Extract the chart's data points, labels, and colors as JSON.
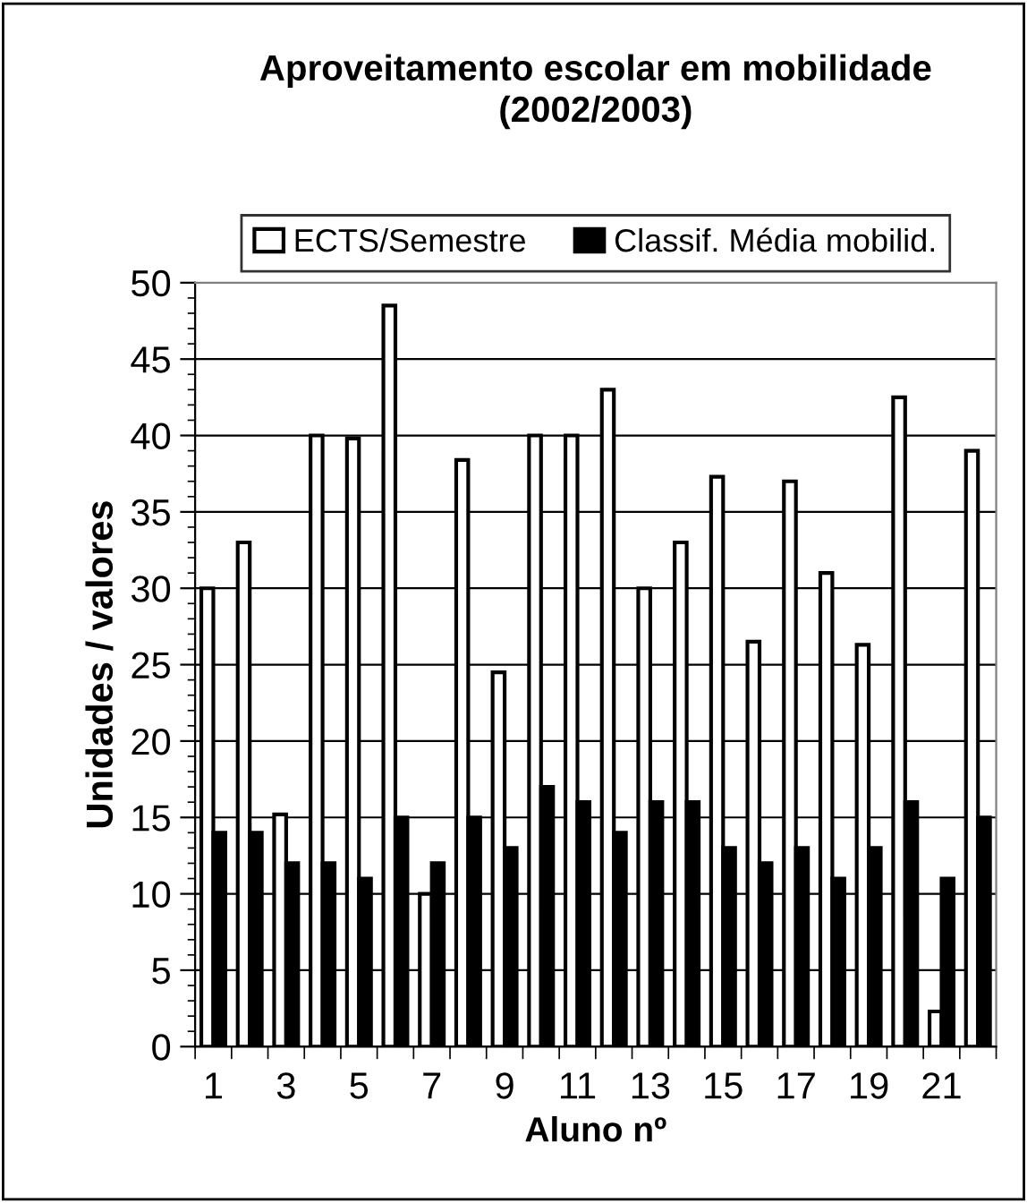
{
  "chart_data": {
    "type": "bar",
    "title": "Aproveitamento escolar em mobilidade\n(2002/2003)",
    "xlabel": "Aluno nº",
    "ylabel": "Unidades / valores",
    "categories": [
      "1",
      null,
      "3",
      null,
      "5",
      null,
      "7",
      null,
      "9",
      null,
      "11",
      null,
      "13",
      null,
      "15",
      null,
      "17",
      null,
      "19",
      null,
      "21",
      null
    ],
    "series": [
      {
        "name": "ECTS/Semestre",
        "color": "#ffffff",
        "values": [
          30,
          33,
          15.2,
          40,
          39.8,
          48.5,
          10,
          38.4,
          24.5,
          40,
          40,
          43,
          30,
          33,
          37.3,
          26.5,
          37,
          31,
          26.3,
          42.5,
          2.3,
          39
        ]
      },
      {
        "name": "Classif. Média mobilid.",
        "color": "#000000",
        "values": [
          14,
          14,
          12,
          12,
          11,
          15,
          12,
          15,
          13,
          17,
          16,
          14,
          16,
          16,
          13,
          12,
          13,
          11,
          13,
          16,
          11,
          15
        ]
      }
    ],
    "ylim": [
      0,
      50
    ],
    "yticks": [
      0,
      {
        "value": 1,
        "label": null
      },
      {
        "value": 2,
        "label": null
      },
      {
        "value": 3,
        "label": null
      },
      {
        "value": 4,
        "label": null
      },
      5,
      {
        "value": 6,
        "label": null
      },
      {
        "value": 7,
        "label": null
      },
      {
        "value": 8,
        "label": null
      },
      {
        "value": 9,
        "label": null
      },
      10,
      {
        "value": 11,
        "label": null
      },
      {
        "value": 12,
        "label": null
      },
      {
        "value": 13,
        "label": null
      },
      {
        "value": 14,
        "label": null
      },
      15,
      {
        "value": 16,
        "label": null
      },
      {
        "value": 17,
        "label": null
      },
      {
        "value": 18,
        "label": null
      },
      {
        "value": 19,
        "label": null
      },
      20,
      {
        "value": 21,
        "label": null
      },
      {
        "value": 22,
        "label": null
      },
      {
        "value": 23,
        "label": null
      },
      {
        "value": 24,
        "label": null
      },
      25,
      {
        "value": 26,
        "label": null
      },
      {
        "value": 27,
        "label": null
      },
      {
        "value": 28,
        "label": null
      },
      {
        "value": 29,
        "label": null
      },
      30,
      {
        "value": 31,
        "label": null
      },
      {
        "value": 32,
        "label": null
      },
      {
        "value": 33,
        "label": null
      },
      {
        "value": 34,
        "label": null
      },
      35,
      {
        "value": 36,
        "label": null
      },
      {
        "value": 37,
        "label": null
      },
      {
        "value": 38,
        "label": null
      },
      {
        "value": 39,
        "label": null
      },
      40,
      {
        "value": 41,
        "label": null
      },
      {
        "value": 42,
        "label": null
      },
      {
        "value": 43,
        "label": null
      },
      {
        "value": 44,
        "label": null
      },
      45,
      {
        "value": 46,
        "label": null
      },
      {
        "value": 47,
        "label": null
      },
      {
        "value": 48,
        "label": null
      },
      {
        "value": 49,
        "label": null
      },
      50
    ],
    "grid": "y",
    "legend": "top"
  }
}
